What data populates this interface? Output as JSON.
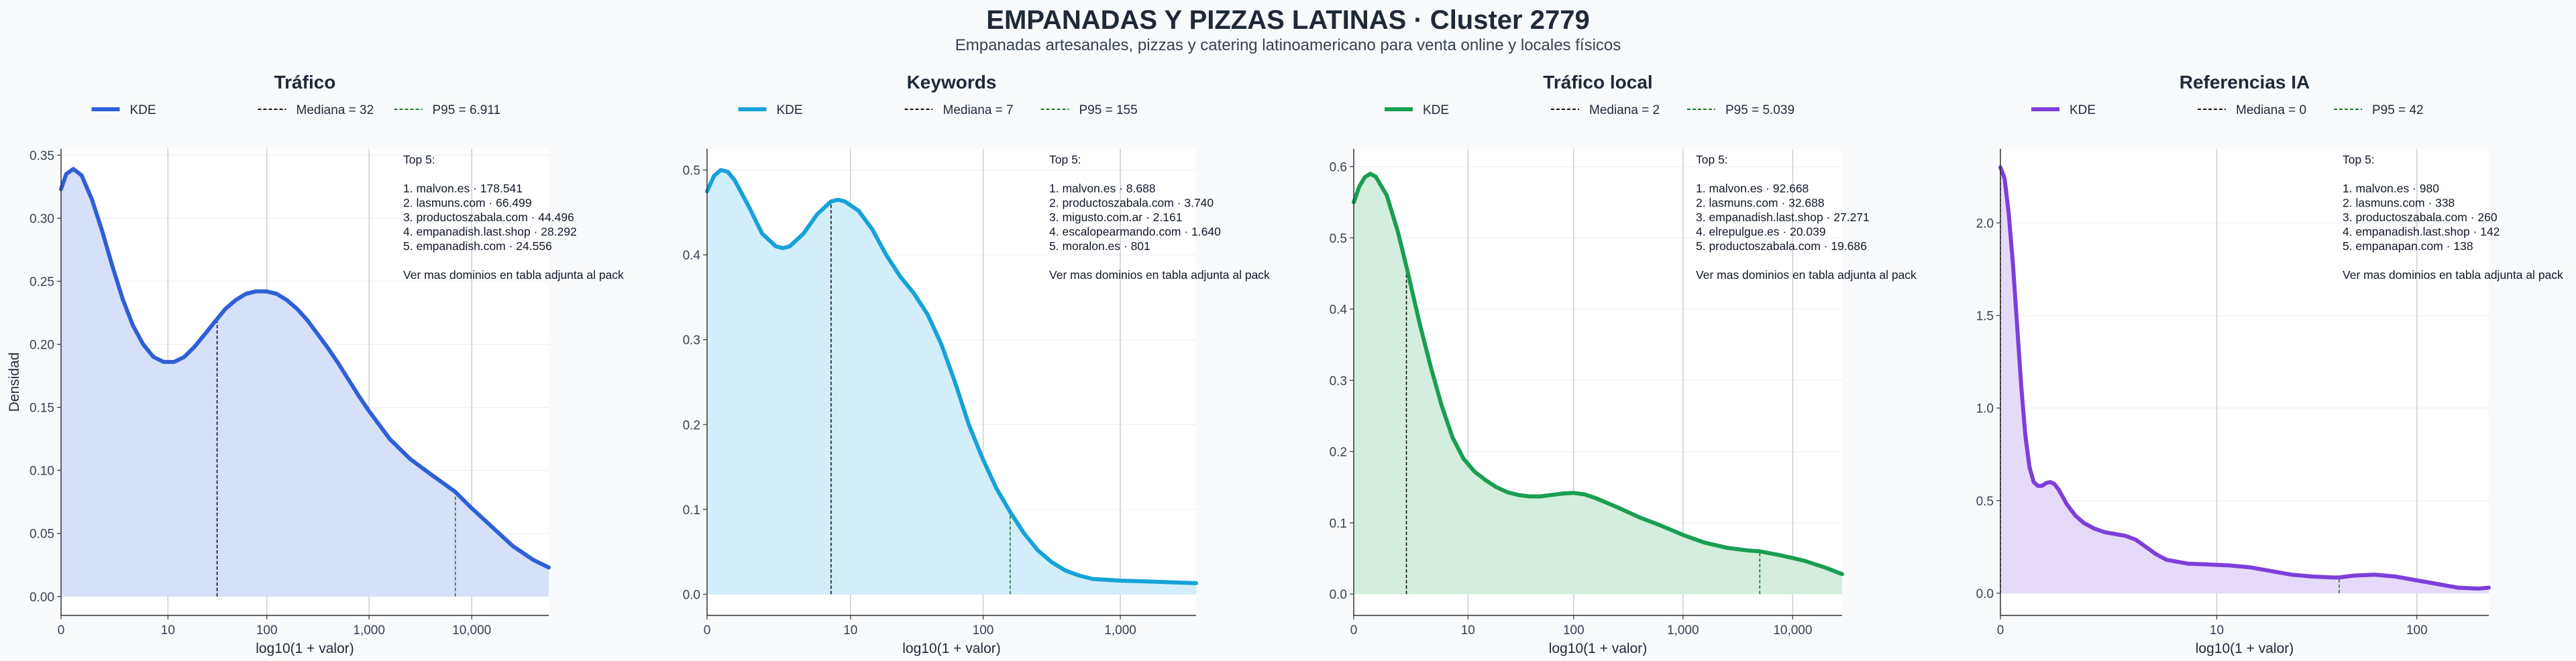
{
  "title": "EMPANADAS Y PIZZAS LATINAS · Cluster 2779",
  "subtitle": "Empanadas artesanales, pizzas y catering latinoamericano para venta online y locales físicos",
  "chart_data": [
    {
      "type": "area",
      "title": "Tráfico",
      "color": "#2f5fd6",
      "fill": "#d6e0f8",
      "xlabel": "log10(1 + valor)",
      "ylabel": "Densidad",
      "xlim": [
        0,
        4.75
      ],
      "ylim": [
        -0.015,
        0.355
      ],
      "xticks": [
        {
          "v": 0,
          "label": "0"
        },
        {
          "v": 1.041,
          "label": "10"
        },
        {
          "v": 2.004,
          "label": "100"
        },
        {
          "v": 3.0,
          "label": "1,000"
        },
        {
          "v": 4.0,
          "label": "10,000"
        }
      ],
      "yticks": [
        {
          "v": 0,
          "label": "0.00"
        },
        {
          "v": 0.05,
          "label": "0.05"
        },
        {
          "v": 0.1,
          "label": "0.10"
        },
        {
          "v": 0.15,
          "label": "0.15"
        },
        {
          "v": 0.2,
          "label": "0.20"
        },
        {
          "v": 0.25,
          "label": "0.25"
        },
        {
          "v": 0.3,
          "label": "0.30"
        },
        {
          "v": 0.35,
          "label": "0.35"
        }
      ],
      "legend": {
        "kde": "KDE",
        "median": "Mediana = 32",
        "p95": "P95 = 6.911"
      },
      "median_x": 1.52,
      "p95_x": 3.84,
      "curve": [
        [
          0,
          0.323
        ],
        [
          0.05,
          0.335
        ],
        [
          0.12,
          0.339
        ],
        [
          0.2,
          0.334
        ],
        [
          0.3,
          0.315
        ],
        [
          0.4,
          0.29
        ],
        [
          0.5,
          0.262
        ],
        [
          0.6,
          0.236
        ],
        [
          0.7,
          0.215
        ],
        [
          0.8,
          0.2
        ],
        [
          0.9,
          0.19
        ],
        [
          1.0,
          0.186
        ],
        [
          1.1,
          0.186
        ],
        [
          1.2,
          0.19
        ],
        [
          1.3,
          0.198
        ],
        [
          1.4,
          0.208
        ],
        [
          1.52,
          0.22
        ],
        [
          1.6,
          0.228
        ],
        [
          1.7,
          0.235
        ],
        [
          1.8,
          0.24
        ],
        [
          1.9,
          0.242
        ],
        [
          2.0,
          0.242
        ],
        [
          2.1,
          0.24
        ],
        [
          2.2,
          0.235
        ],
        [
          2.3,
          0.228
        ],
        [
          2.4,
          0.219
        ],
        [
          2.5,
          0.208
        ],
        [
          2.6,
          0.197
        ],
        [
          2.7,
          0.185
        ],
        [
          2.8,
          0.172
        ],
        [
          2.9,
          0.159
        ],
        [
          3.0,
          0.147
        ],
        [
          3.2,
          0.125
        ],
        [
          3.4,
          0.109
        ],
        [
          3.6,
          0.097
        ],
        [
          3.84,
          0.083
        ],
        [
          4.0,
          0.07
        ],
        [
          4.2,
          0.055
        ],
        [
          4.4,
          0.04
        ],
        [
          4.6,
          0.029
        ],
        [
          4.75,
          0.023
        ]
      ],
      "annotation": {
        "heading": "Top 5:",
        "items": [
          "1. malvon.es · 178.541",
          "2. lasmuns.com · 66.499",
          "3. productoszabala.com · 44.496",
          "4. empanadish.last.shop · 28.292",
          "5. empanadish.com · 24.556"
        ],
        "footer": "Ver mas dominios en tabla adjunta al pack"
      }
    },
    {
      "type": "area",
      "title": "Keywords",
      "color": "#16a2d8",
      "fill": "#d2eefa",
      "xlabel": "log10(1 + valor)",
      "ylabel": "",
      "xlim": [
        0,
        3.55
      ],
      "ylim": [
        -0.025,
        0.525
      ],
      "xticks": [
        {
          "v": 0,
          "label": "0"
        },
        {
          "v": 1.041,
          "label": "10"
        },
        {
          "v": 2.004,
          "label": "100"
        },
        {
          "v": 3.0,
          "label": "1,000"
        }
      ],
      "yticks": [
        {
          "v": 0,
          "label": "0.0"
        },
        {
          "v": 0.1,
          "label": "0.1"
        },
        {
          "v": 0.2,
          "label": "0.2"
        },
        {
          "v": 0.3,
          "label": "0.3"
        },
        {
          "v": 0.4,
          "label": "0.4"
        },
        {
          "v": 0.5,
          "label": "0.5"
        }
      ],
      "legend": {
        "kde": "KDE",
        "median": "Mediana = 7",
        "p95": "P95 = 155"
      },
      "median_x": 0.9,
      "p95_x": 2.2,
      "curve": [
        [
          0,
          0.475
        ],
        [
          0.05,
          0.493
        ],
        [
          0.1,
          0.5
        ],
        [
          0.15,
          0.498
        ],
        [
          0.2,
          0.488
        ],
        [
          0.3,
          0.458
        ],
        [
          0.4,
          0.425
        ],
        [
          0.5,
          0.41
        ],
        [
          0.55,
          0.408
        ],
        [
          0.6,
          0.41
        ],
        [
          0.7,
          0.425
        ],
        [
          0.8,
          0.448
        ],
        [
          0.9,
          0.463
        ],
        [
          0.95,
          0.465
        ],
        [
          1.0,
          0.463
        ],
        [
          1.1,
          0.452
        ],
        [
          1.2,
          0.43
        ],
        [
          1.3,
          0.4
        ],
        [
          1.4,
          0.375
        ],
        [
          1.5,
          0.355
        ],
        [
          1.6,
          0.33
        ],
        [
          1.7,
          0.295
        ],
        [
          1.8,
          0.25
        ],
        [
          1.9,
          0.2
        ],
        [
          2.0,
          0.16
        ],
        [
          2.1,
          0.125
        ],
        [
          2.2,
          0.097
        ],
        [
          2.3,
          0.072
        ],
        [
          2.4,
          0.052
        ],
        [
          2.5,
          0.038
        ],
        [
          2.6,
          0.028
        ],
        [
          2.7,
          0.022
        ],
        [
          2.8,
          0.018
        ],
        [
          3.0,
          0.016
        ],
        [
          3.2,
          0.015
        ],
        [
          3.55,
          0.013
        ]
      ],
      "annotation": {
        "heading": "Top 5:",
        "items": [
          "1. malvon.es · 8.688",
          "2. productoszabala.com · 3.740",
          "3. migusto.com.ar · 2.161",
          "4. escalopearmando.com · 1.640",
          "5. moralon.es · 801"
        ],
        "footer": "Ver mas dominios en tabla adjunta al pack"
      }
    },
    {
      "type": "area",
      "title": "Tráfico local",
      "color": "#1a9e52",
      "fill": "#d3eedc",
      "xlabel": "log10(1 + valor)",
      "ylabel": "",
      "xlim": [
        0,
        4.45
      ],
      "ylim": [
        -0.03,
        0.625
      ],
      "xticks": [
        {
          "v": 0,
          "label": "0"
        },
        {
          "v": 1.041,
          "label": "10"
        },
        {
          "v": 2.004,
          "label": "100"
        },
        {
          "v": 3.0,
          "label": "1,000"
        },
        {
          "v": 4.0,
          "label": "10,000"
        }
      ],
      "yticks": [
        {
          "v": 0,
          "label": "0.0"
        },
        {
          "v": 0.1,
          "label": "0.1"
        },
        {
          "v": 0.2,
          "label": "0.2"
        },
        {
          "v": 0.3,
          "label": "0.3"
        },
        {
          "v": 0.4,
          "label": "0.4"
        },
        {
          "v": 0.5,
          "label": "0.5"
        },
        {
          "v": 0.6,
          "label": "0.6"
        }
      ],
      "legend": {
        "kde": "KDE",
        "median": "Mediana = 2",
        "p95": "P95 = 5.039"
      },
      "median_x": 0.48,
      "p95_x": 3.7,
      "curve": [
        [
          0,
          0.55
        ],
        [
          0.05,
          0.572
        ],
        [
          0.1,
          0.585
        ],
        [
          0.15,
          0.59
        ],
        [
          0.2,
          0.586
        ],
        [
          0.3,
          0.56
        ],
        [
          0.4,
          0.51
        ],
        [
          0.48,
          0.46
        ],
        [
          0.6,
          0.38
        ],
        [
          0.7,
          0.32
        ],
        [
          0.8,
          0.265
        ],
        [
          0.9,
          0.22
        ],
        [
          1.0,
          0.19
        ],
        [
          1.1,
          0.172
        ],
        [
          1.2,
          0.16
        ],
        [
          1.3,
          0.15
        ],
        [
          1.4,
          0.143
        ],
        [
          1.5,
          0.139
        ],
        [
          1.6,
          0.137
        ],
        [
          1.7,
          0.137
        ],
        [
          1.8,
          0.139
        ],
        [
          1.9,
          0.141
        ],
        [
          2.0,
          0.142
        ],
        [
          2.1,
          0.14
        ],
        [
          2.2,
          0.135
        ],
        [
          2.4,
          0.122
        ],
        [
          2.6,
          0.108
        ],
        [
          2.8,
          0.096
        ],
        [
          3.0,
          0.083
        ],
        [
          3.2,
          0.072
        ],
        [
          3.4,
          0.065
        ],
        [
          3.6,
          0.061
        ],
        [
          3.7,
          0.06
        ],
        [
          3.9,
          0.054
        ],
        [
          4.1,
          0.047
        ],
        [
          4.3,
          0.037
        ],
        [
          4.45,
          0.028
        ]
      ],
      "annotation": {
        "heading": "Top 5:",
        "items": [
          "1. malvon.es · 92.668",
          "2. lasmuns.com · 32.688",
          "3. empanadish.last.shop · 27.271",
          "4. elrepulgue.es · 20.039",
          "5. productoszabala.com · 19.686"
        ],
        "footer": "Ver mas dominios en tabla adjunta al pack"
      }
    },
    {
      "type": "area",
      "title": "Referencias IA",
      "color": "#7c3fd9",
      "fill": "#e6dafb",
      "xlabel": "log10(1 + valor)",
      "ylabel": "",
      "xlim": [
        0,
        2.35
      ],
      "ylim": [
        -0.12,
        2.4
      ],
      "xticks": [
        {
          "v": 0,
          "label": "0"
        },
        {
          "v": 1.041,
          "label": "10"
        },
        {
          "v": 2.004,
          "label": "100"
        }
      ],
      "yticks": [
        {
          "v": 0,
          "label": "0.0"
        },
        {
          "v": 0.5,
          "label": "0.5"
        },
        {
          "v": 1.0,
          "label": "1.0"
        },
        {
          "v": 1.5,
          "label": "1.5"
        },
        {
          "v": 2.0,
          "label": "2.0"
        }
      ],
      "legend": {
        "kde": "KDE",
        "median": "Mediana = 0",
        "p95": "P95 = 42"
      },
      "median_x": 0,
      "p95_x": 1.63,
      "curve": [
        [
          0,
          2.3
        ],
        [
          0.02,
          2.24
        ],
        [
          0.04,
          2.05
        ],
        [
          0.06,
          1.78
        ],
        [
          0.08,
          1.45
        ],
        [
          0.1,
          1.12
        ],
        [
          0.12,
          0.85
        ],
        [
          0.14,
          0.68
        ],
        [
          0.16,
          0.6
        ],
        [
          0.18,
          0.58
        ],
        [
          0.2,
          0.58
        ],
        [
          0.22,
          0.595
        ],
        [
          0.24,
          0.6
        ],
        [
          0.26,
          0.59
        ],
        [
          0.28,
          0.56
        ],
        [
          0.32,
          0.48
        ],
        [
          0.36,
          0.42
        ],
        [
          0.4,
          0.38
        ],
        [
          0.45,
          0.35
        ],
        [
          0.5,
          0.33
        ],
        [
          0.55,
          0.32
        ],
        [
          0.6,
          0.31
        ],
        [
          0.65,
          0.29
        ],
        [
          0.7,
          0.25
        ],
        [
          0.75,
          0.21
        ],
        [
          0.8,
          0.18
        ],
        [
          0.9,
          0.16
        ],
        [
          1.0,
          0.155
        ],
        [
          1.1,
          0.15
        ],
        [
          1.2,
          0.14
        ],
        [
          1.3,
          0.12
        ],
        [
          1.4,
          0.1
        ],
        [
          1.5,
          0.09
        ],
        [
          1.6,
          0.085
        ],
        [
          1.63,
          0.085
        ],
        [
          1.7,
          0.095
        ],
        [
          1.8,
          0.1
        ],
        [
          1.9,
          0.09
        ],
        [
          2.0,
          0.07
        ],
        [
          2.1,
          0.05
        ],
        [
          2.2,
          0.03
        ],
        [
          2.3,
          0.025
        ],
        [
          2.35,
          0.03
        ]
      ],
      "annotation": {
        "heading": "Top 5:",
        "items": [
          "1. malvon.es · 980",
          "2. lasmuns.com · 338",
          "3. productoszabala.com · 260",
          "4. empanadish.last.shop · 142",
          "5. empanapan.com · 138"
        ],
        "footer": "Ver mas dominios en tabla adjunta al pack"
      }
    }
  ]
}
